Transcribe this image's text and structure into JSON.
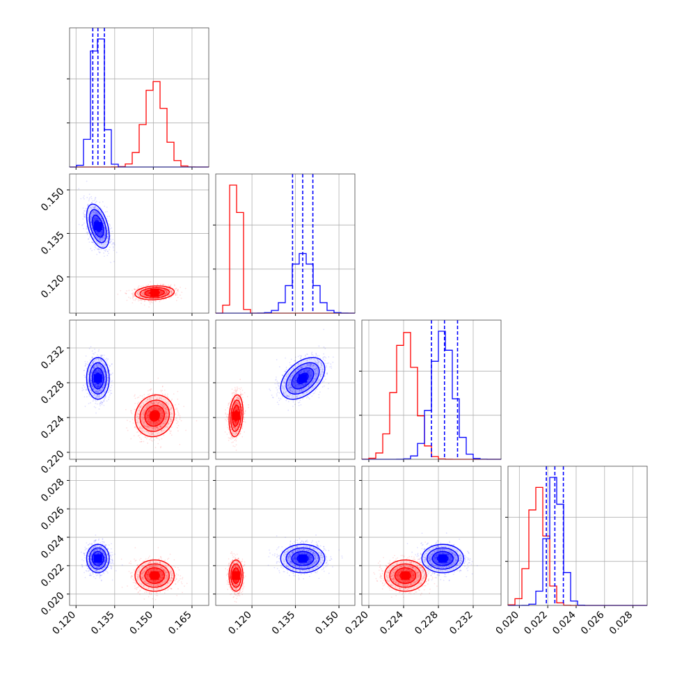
{
  "chart_data": {
    "type": "corner",
    "grid": true,
    "series": [
      {
        "color": "#ff0000",
        "params": {
          "p0": {
            "center": 0.1505,
            "sigma": 0.0038
          },
          "p1": {
            "center": 0.1145,
            "sigma": 0.0012
          },
          "p2": {
            "center": 0.2242,
            "sigma": 0.0012
          },
          "p3": {
            "center": 0.0213,
            "sigma": 0.00055
          }
        },
        "correlations": [
          {
            "pair": [
              "p0",
              "p1"
            ],
            "rho": 0.15
          },
          {
            "pair": [
              "p0",
              "p2"
            ],
            "rho": 0.1
          },
          {
            "pair": [
              "p0",
              "p3"
            ],
            "rho": 0.0
          },
          {
            "pair": [
              "p1",
              "p2"
            ],
            "rho": 0.2
          },
          {
            "pair": [
              "p1",
              "p3"
            ],
            "rho": 0.0
          },
          {
            "pair": [
              "p2",
              "p3"
            ],
            "rho": 0.0
          }
        ]
      },
      {
        "color": "#0000ff",
        "params": {
          "p0": {
            "center": 0.1285,
            "sigma": 0.0022
          },
          "p1": {
            "center": 0.1375,
            "sigma": 0.0038
          },
          "p2": {
            "center": 0.2285,
            "sigma": 0.0012
          },
          "p3": {
            "center": 0.0225,
            "sigma": 0.0005
          }
        },
        "quantiles": {
          "p0": [
            0.1265,
            0.1285,
            0.131
          ],
          "p1": [
            0.134,
            0.1375,
            0.141
          ],
          "p2": [
            0.2272,
            0.2287,
            0.2302
          ],
          "p3": [
            0.0219,
            0.0225,
            0.0231
          ]
        },
        "correlations": [
          {
            "pair": [
              "p0",
              "p1"
            ],
            "rho": -0.45
          },
          {
            "pair": [
              "p0",
              "p2"
            ],
            "rho": 0.0
          },
          {
            "pair": [
              "p0",
              "p3"
            ],
            "rho": 0.0
          },
          {
            "pair": [
              "p1",
              "p2"
            ],
            "rho": 0.45
          },
          {
            "pair": [
              "p1",
              "p3"
            ],
            "rho": 0.0
          },
          {
            "pair": [
              "p2",
              "p3"
            ],
            "rho": 0.0
          }
        ]
      }
    ],
    "axes": [
      {
        "id": "p0",
        "range": [
          0.1175,
          0.1715
        ],
        "ticks": [
          0.12,
          0.135,
          0.15,
          0.165
        ],
        "tick_labels": [
          "0.120",
          "0.135",
          "0.150",
          "0.165"
        ]
      },
      {
        "id": "p1",
        "range": [
          0.1075,
          0.1555
        ],
        "ticks": [
          0.12,
          0.135,
          0.15
        ],
        "tick_labels": [
          "0.120",
          "0.135",
          "0.150"
        ]
      },
      {
        "id": "p2",
        "range": [
          0.2192,
          0.2352
        ],
        "ticks": [
          0.22,
          0.224,
          0.228,
          0.232
        ],
        "tick_labels": [
          "0.220",
          "0.224",
          "0.228",
          "0.232"
        ]
      },
      {
        "id": "p3",
        "range": [
          0.0192,
          0.029
        ],
        "ticks": [
          0.02,
          0.022,
          0.024,
          0.026,
          0.028
        ],
        "tick_labels": [
          "0.020",
          "0.022",
          "0.024",
          "0.026",
          "0.028"
        ]
      }
    ]
  }
}
